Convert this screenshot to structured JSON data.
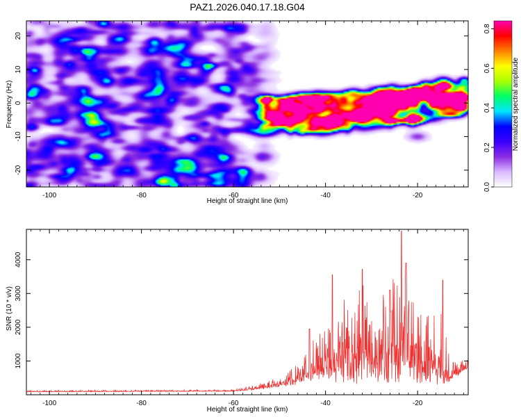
{
  "title": "PAZ1.2026.040.17.18.G04",
  "chart_data": [
    {
      "type": "heatmap",
      "title": "PAZ1.2026.040.17.18.G04",
      "xlabel": "Height of straight line (km)",
      "ylabel": "Frequency (Hz)",
      "xlim": [
        -105,
        -9
      ],
      "ylim": [
        -25,
        24.5
      ],
      "xticks": [
        -100,
        -80,
        -60,
        -40,
        -20
      ],
      "xtick_labels": [
        "-100",
        "-80",
        "-60",
        "-40",
        "-20"
      ],
      "yticks": [
        -20,
        -10,
        0,
        10,
        20
      ],
      "ytick_labels": [
        "-20",
        "-10",
        "0",
        "10",
        "20"
      ],
      "colorbar": {
        "label": "Normalized spectral amplitude",
        "range": [
          0,
          0.84
        ],
        "ticks": [
          0,
          0.2,
          0.4,
          0.6,
          0.8
        ],
        "tick_labels": [
          "0.0",
          "0.2",
          "0.4",
          "0.6",
          "0.8"
        ],
        "colors": [
          "#ffffff",
          "#d9b8ff",
          "#8a2be2",
          "#3a00ff",
          "#0000ff",
          "#00e5ff",
          "#00ff66",
          "#a8ff00",
          "#ffff00",
          "#ff8000",
          "#ff0000",
          "#ff00b0"
        ]
      },
      "features": {
        "noise_region_x": [
          -105,
          -50
        ],
        "noise_amplitude": 0.07,
        "signal_region_x": [
          -55,
          -9
        ],
        "signal_centroid_hz": [
          {
            "x": -55,
            "f": -4
          },
          {
            "x": -40,
            "f": -3
          },
          {
            "x": -20,
            "f": 0
          },
          {
            "x": -9,
            "f": 2
          }
        ],
        "peak": {
          "x": -16,
          "f": 1,
          "value": 0.84
        },
        "secondary_peaks": [
          {
            "x": -45,
            "f": 2,
            "value": 0.32
          },
          {
            "x": -41,
            "f": -6,
            "value": 0.3
          },
          {
            "x": -34,
            "f": -4,
            "value": 0.38
          },
          {
            "x": -28,
            "f": -2,
            "value": 0.32
          },
          {
            "x": -22,
            "f": 2,
            "value": 0.45
          },
          {
            "x": -11,
            "f": 2,
            "value": 0.55
          },
          {
            "x": -20,
            "f": -10,
            "value": 0.15
          }
        ]
      }
    },
    {
      "type": "line",
      "xlabel": "Height of straight line (km)",
      "ylabel": "SNR (10 * v/v)",
      "xlim": [
        -105,
        -9
      ],
      "ylim": [
        0,
        4900
      ],
      "xticks": [
        -100,
        -80,
        -60,
        -40,
        -20
      ],
      "xtick_labels": [
        "-100",
        "-80",
        "-60",
        "-40",
        "-20"
      ],
      "yticks": [
        1000,
        2000,
        3000,
        4000
      ],
      "ytick_labels": [
        "1000",
        "2000",
        "3000",
        "4000"
      ],
      "color": "#ee3333",
      "envelope": [
        {
          "x": -105,
          "base": 90,
          "amp": 40
        },
        {
          "x": -60,
          "base": 110,
          "amp": 50
        },
        {
          "x": -55,
          "base": 180,
          "amp": 150
        },
        {
          "x": -50,
          "base": 280,
          "amp": 250
        },
        {
          "x": -46,
          "base": 450,
          "amp": 600
        },
        {
          "x": -42,
          "base": 700,
          "amp": 1200
        },
        {
          "x": -38,
          "base": 900,
          "amp": 2200
        },
        {
          "x": -33,
          "base": 900,
          "amp": 2400
        },
        {
          "x": -28,
          "base": 900,
          "amp": 2400
        },
        {
          "x": -24,
          "base": 1000,
          "amp": 3200
        },
        {
          "x": -20,
          "base": 800,
          "amp": 2200
        },
        {
          "x": -15,
          "base": 700,
          "amp": 2200
        },
        {
          "x": -13,
          "base": 500,
          "amp": 500
        },
        {
          "x": -9,
          "base": 850,
          "amp": 250
        }
      ],
      "peaks": [
        {
          "x": -23.5,
          "y": 4850
        },
        {
          "x": -38.5,
          "y": 3550
        },
        {
          "x": -32,
          "y": 3720
        },
        {
          "x": -14.5,
          "y": 3400
        },
        {
          "x": -26,
          "y": 3100
        },
        {
          "x": -43.5,
          "y": 1950
        },
        {
          "x": -22.5,
          "y": 3900
        }
      ]
    }
  ]
}
